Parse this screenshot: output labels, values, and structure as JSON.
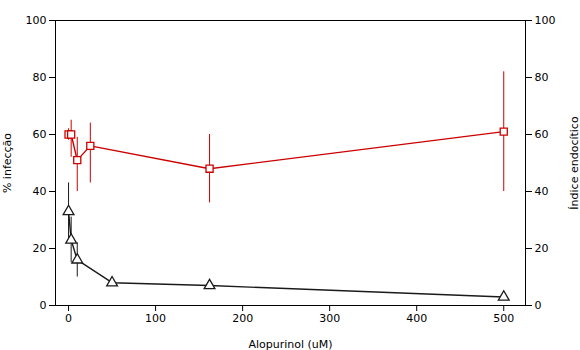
{
  "chart_data": {
    "type": "line",
    "xlabel": "Alopurinol (uM)",
    "ylabel": "% infecção",
    "y2label": "Índice endocítico",
    "x": [
      0,
      3,
      10,
      25,
      50,
      162,
      500
    ],
    "series": [
      {
        "color": "#1a1a1a",
        "marker": "triangle",
        "axis": "y",
        "values": [
          33,
          23,
          16,
          null,
          8,
          7,
          3
        ],
        "yerr_lo": [
          10,
          8,
          6,
          null,
          1,
          1,
          1
        ],
        "yerr_hi": [
          10,
          8,
          6,
          null,
          1,
          1,
          1
        ]
      },
      {
        "color": "#cc0000",
        "marker": "square",
        "axis": "y2",
        "values": [
          60,
          60,
          51,
          56,
          null,
          48,
          61
        ],
        "yerr_lo": [
          2,
          8,
          11,
          13,
          null,
          12,
          21
        ],
        "yerr_hi": [
          2,
          5,
          8,
          8,
          null,
          12,
          21
        ]
      }
    ],
    "xlim": [
      -15,
      525
    ],
    "xticks": [
      0,
      100,
      200,
      300,
      400,
      500
    ],
    "ylim": [
      0,
      100
    ],
    "yticks": [
      0,
      20,
      40,
      60,
      80,
      100
    ],
    "y2lim": [
      0,
      100
    ],
    "y2ticks": [
      0,
      20,
      40,
      60,
      80,
      100
    ],
    "grid": false
  }
}
